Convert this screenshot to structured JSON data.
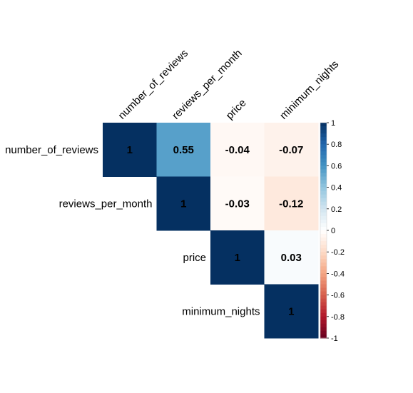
{
  "chart_data": {
    "type": "heatmap",
    "variables": [
      "number_of_reviews",
      "reviews_per_month",
      "price",
      "minimum_nights"
    ],
    "matrix": [
      [
        1,
        0.55,
        -0.04,
        -0.07
      ],
      [
        null,
        1,
        -0.03,
        -0.12
      ],
      [
        null,
        null,
        1,
        0.03
      ],
      [
        null,
        null,
        null,
        1
      ]
    ],
    "cell_labels": [
      [
        "1",
        "0.55",
        "-0.04",
        "-0.07"
      ],
      [
        "",
        "1",
        "-0.03",
        "-0.12"
      ],
      [
        "",
        "",
        "1",
        "0.03"
      ],
      [
        "",
        "",
        "",
        "1"
      ]
    ],
    "triangle": "upper",
    "colorbar": {
      "range": [
        -1,
        1
      ],
      "ticks": [
        "1",
        "0.8",
        "0.6",
        "0.4",
        "0.2",
        "0",
        "-0.2",
        "-0.4",
        "-0.6",
        "-0.8",
        "-1"
      ],
      "tick_values": [
        1,
        0.8,
        0.6,
        0.4,
        0.2,
        0,
        -0.2,
        -0.4,
        -0.6,
        -0.8,
        -1
      ],
      "colors": [
        "#67001F",
        "#B2182B",
        "#D6604D",
        "#F4A582",
        "#FDDBC7",
        "#FFFFFF",
        "#D1E5F0",
        "#92C5DE",
        "#4393C3",
        "#2166AC",
        "#053061"
      ]
    },
    "grid": false,
    "title": ""
  }
}
